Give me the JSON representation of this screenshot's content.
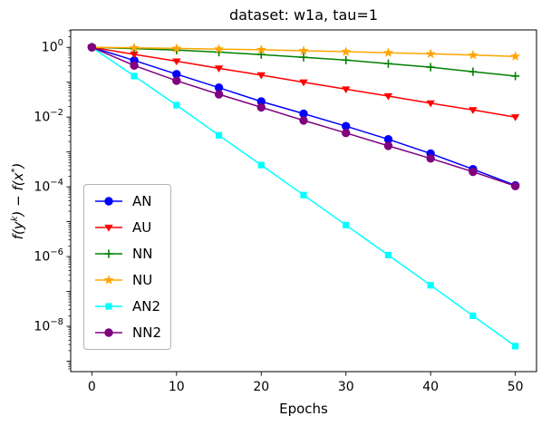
{
  "title": "dataset: w1a, tau=1",
  "xlabel": "Epochs",
  "ylabel_parts": {
    "p1": "f(y",
    "s1": "k",
    "p2": ") − f(x",
    "s2": "*",
    "p3": ")"
  },
  "chart_data": {
    "type": "line",
    "title": "dataset: w1a, tau=1",
    "xlabel": "Epochs",
    "ylabel": "f(y^k) - f(x^*)",
    "x": [
      0,
      5,
      10,
      15,
      20,
      25,
      30,
      35,
      40,
      45,
      50
    ],
    "xlim": [
      -2.5,
      52.5
    ],
    "ylog_lim": [
      -9.3,
      0.5
    ],
    "xticks": [
      0,
      10,
      20,
      30,
      40,
      50
    ],
    "ytick_exponents": [
      0,
      -2,
      -4,
      -6,
      -8
    ],
    "yscale": "log",
    "grid": false,
    "legend_position": "center-left",
    "frame_color": "#000000",
    "series": [
      {
        "name": "AN",
        "color": "#0000ff",
        "marker": "circle",
        "values": [
          1.0,
          0.42,
          0.17,
          0.07,
          0.028,
          0.0125,
          0.0055,
          0.0023,
          0.0009,
          0.00032,
          0.00011
        ]
      },
      {
        "name": "AU",
        "color": "#ff0000",
        "marker": "triangle-down",
        "values": [
          1.0,
          0.63,
          0.4,
          0.25,
          0.16,
          0.1,
          0.063,
          0.04,
          0.025,
          0.016,
          0.01
        ]
      },
      {
        "name": "NN",
        "color": "#008000",
        "marker": "plus",
        "values": [
          1.0,
          0.92,
          0.83,
          0.73,
          0.62,
          0.52,
          0.43,
          0.34,
          0.27,
          0.2,
          0.15
        ]
      },
      {
        "name": "NU",
        "color": "#ffa500",
        "marker": "star",
        "values": [
          1.0,
          0.97,
          0.93,
          0.89,
          0.85,
          0.8,
          0.75,
          0.7,
          0.65,
          0.6,
          0.55
        ]
      },
      {
        "name": "AN2",
        "color": "#00ffff",
        "marker": "square",
        "values": [
          1.0,
          0.15,
          0.022,
          0.003,
          0.00042,
          5.8e-05,
          8e-06,
          1.1e-06,
          1.5e-07,
          2e-08,
          2.7e-09
        ]
      },
      {
        "name": "NN2",
        "color": "#800080",
        "marker": "circle",
        "values": [
          1.0,
          0.3,
          0.11,
          0.045,
          0.019,
          0.008,
          0.0035,
          0.0015,
          0.00065,
          0.00027,
          0.000105
        ]
      }
    ]
  }
}
